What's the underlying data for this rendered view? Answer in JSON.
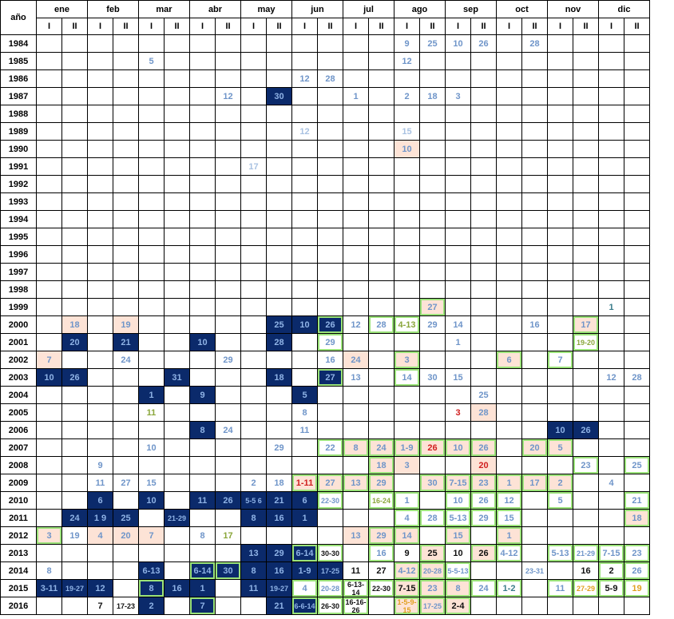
{
  "header": {
    "year_label": "año",
    "months": [
      "ene",
      "feb",
      "mar",
      "abr",
      "may",
      "jun",
      "jul",
      "ago",
      "sep",
      "oct",
      "nov",
      "dic"
    ],
    "halves": [
      "I",
      "II"
    ]
  },
  "rows": [
    {
      "year": "1984",
      "cells": [
        "",
        "",
        "",
        "",
        "",
        "",
        "",
        "",
        "",
        "",
        "",
        "",
        "",
        "",
        "9",
        "25",
        "10",
        "26",
        "",
        "28",
        "",
        "",
        "",
        ""
      ]
    },
    {
      "year": "1985",
      "cells": [
        "",
        "",
        "",
        "",
        "5",
        "",
        "",
        "",
        "",
        "",
        "",
        "",
        "",
        "",
        "12",
        "",
        "",
        "",
        "",
        "",
        "",
        "",
        "",
        ""
      ]
    },
    {
      "year": "1986",
      "cells": [
        "",
        "",
        "",
        "",
        "",
        "",
        "",
        "",
        "",
        "",
        "12",
        "28",
        "",
        "",
        "",
        "",
        "",
        "",
        "",
        "",
        "",
        "",
        "",
        ""
      ]
    },
    {
      "year": "1987",
      "cells": [
        "",
        "",
        "",
        "",
        "",
        "",
        "",
        "12",
        "",
        "30",
        "",
        "",
        "1",
        "",
        "2",
        "18",
        "3",
        "",
        "",
        "",
        "",
        "",
        "",
        ""
      ]
    },
    {
      "year": "1988",
      "cells": [
        "",
        "",
        "",
        "",
        "",
        "",
        "",
        "",
        "",
        "",
        "",
        "",
        "",
        "",
        "",
        "",
        "",
        "",
        "",
        "",
        "",
        "",
        "",
        ""
      ]
    },
    {
      "year": "1989",
      "cells": [
        "",
        "",
        "",
        "",
        "",
        "",
        "",
        "",
        "",
        "",
        "12",
        "",
        "",
        "",
        "15",
        "",
        "",
        "",
        "",
        "",
        "",
        "",
        "",
        ""
      ]
    },
    {
      "year": "1990",
      "cells": [
        "",
        "",
        "",
        "",
        "",
        "",
        "",
        "",
        "",
        "",
        "",
        "",
        "",
        "",
        "10",
        "",
        "",
        "",
        "",
        "",
        "",
        "",
        "",
        ""
      ]
    },
    {
      "year": "1991",
      "cells": [
        "",
        "",
        "",
        "",
        "",
        "",
        "",
        "",
        "17",
        "",
        "",
        "",
        "",
        "",
        "",
        "",
        "",
        "",
        "",
        "",
        "",
        "",
        "",
        ""
      ]
    },
    {
      "year": "1992",
      "cells": [
        "",
        "",
        "",
        "",
        "",
        "",
        "",
        "",
        "",
        "",
        "",
        "",
        "",
        "",
        "",
        "",
        "",
        "",
        "",
        "",
        "",
        "",
        "",
        ""
      ]
    },
    {
      "year": "1993",
      "cells": [
        "",
        "",
        "",
        "",
        "",
        "",
        "",
        "",
        "",
        "",
        "",
        "",
        "",
        "",
        "",
        "",
        "",
        "",
        "",
        "",
        "",
        "",
        "",
        ""
      ]
    },
    {
      "year": "1994",
      "cells": [
        "",
        "",
        "",
        "",
        "",
        "",
        "",
        "",
        "",
        "",
        "",
        "",
        "",
        "",
        "",
        "",
        "",
        "",
        "",
        "",
        "",
        "",
        "",
        ""
      ]
    },
    {
      "year": "1995",
      "cells": [
        "",
        "",
        "",
        "",
        "",
        "",
        "",
        "",
        "",
        "",
        "",
        "",
        "",
        "",
        "",
        "",
        "",
        "",
        "",
        "",
        "",
        "",
        "",
        ""
      ]
    },
    {
      "year": "1996",
      "cells": [
        "",
        "",
        "",
        "",
        "",
        "",
        "",
        "",
        "",
        "",
        "",
        "",
        "",
        "",
        "",
        "",
        "",
        "",
        "",
        "",
        "",
        "",
        "",
        ""
      ]
    },
    {
      "year": "1997",
      "cells": [
        "",
        "",
        "",
        "",
        "",
        "",
        "",
        "",
        "",
        "",
        "",
        "",
        "",
        "",
        "",
        "",
        "",
        "",
        "",
        "",
        "",
        "",
        "",
        ""
      ]
    },
    {
      "year": "1998",
      "cells": [
        "",
        "",
        "",
        "",
        "",
        "",
        "",
        "",
        "",
        "",
        "",
        "",
        "",
        "",
        "",
        "",
        "",
        "",
        "",
        "",
        "",
        "",
        "",
        ""
      ]
    },
    {
      "year": "1999",
      "cells": [
        "",
        "",
        "",
        "",
        "",
        "",
        "",
        "",
        "",
        "",
        "",
        "",
        "",
        "",
        "",
        "27",
        "",
        "",
        "",
        "",
        "",
        "",
        "1",
        ""
      ]
    },
    {
      "year": "2000",
      "cells": [
        "",
        "18",
        "",
        "19",
        "",
        "",
        "",
        "",
        "",
        "25",
        "10",
        "26",
        "12",
        "28",
        "4-13",
        "29",
        "14",
        "",
        "",
        "16",
        "",
        "17",
        "",
        ""
      ]
    },
    {
      "year": "2001",
      "cells": [
        "",
        "20",
        "",
        "21",
        "",
        "",
        "10",
        "",
        "",
        "28",
        "",
        "29",
        "",
        "",
        "",
        "",
        "1",
        "",
        "",
        "",
        "",
        "19-20",
        "",
        ""
      ]
    },
    {
      "year": "2002",
      "cells": [
        "7",
        "",
        "",
        "24",
        "",
        "",
        "",
        "29",
        "",
        "",
        "",
        "16",
        "24",
        "",
        "3",
        "",
        "",
        "",
        "6",
        "",
        "7",
        "",
        "",
        ""
      ]
    },
    {
      "year": "2003",
      "cells": [
        "10",
        "26",
        "",
        "",
        "",
        "31",
        "",
        "",
        "",
        "18",
        "",
        "27",
        "13",
        "",
        "14",
        "30",
        "15",
        "",
        "",
        "",
        "",
        "",
        "12",
        "28"
      ]
    },
    {
      "year": "2004",
      "cells": [
        "",
        "",
        "",
        "",
        "1",
        "",
        "9",
        "",
        "",
        "",
        "5",
        "",
        "",
        "",
        "",
        "",
        "",
        "25",
        "",
        "",
        "",
        "",
        "",
        ""
      ]
    },
    {
      "year": "2005",
      "cells": [
        "",
        "",
        "",
        "",
        "11",
        "",
        "",
        "",
        "",
        "",
        "8",
        "",
        "",
        "",
        "",
        "",
        "3",
        "28",
        "",
        "",
        "",
        "",
        "",
        ""
      ]
    },
    {
      "year": "2006",
      "cells": [
        "",
        "",
        "",
        "",
        "",
        "",
        "8",
        "24",
        "",
        "",
        "11",
        "",
        "",
        "",
        "",
        "",
        "",
        "",
        "",
        "",
        "10",
        "26",
        "",
        ""
      ]
    },
    {
      "year": "2007",
      "cells": [
        "",
        "",
        "",
        "",
        "10",
        "",
        "",
        "",
        "",
        "29",
        "",
        "22",
        "8",
        "24",
        "1-9",
        "26",
        "10",
        "26",
        "",
        "20",
        "5",
        "",
        "",
        ""
      ]
    },
    {
      "year": "2008",
      "cells": [
        "",
        "",
        "9",
        "",
        "",
        "",
        "",
        "",
        "",
        "",
        "",
        "",
        "",
        "18",
        "3",
        "",
        "",
        "20",
        "",
        "",
        "",
        "23",
        "",
        "25"
      ]
    },
    {
      "year": "2009",
      "cells": [
        "",
        "",
        "11",
        "27",
        "15",
        "",
        "",
        "",
        "2",
        "18",
        "1-11",
        "27",
        "13",
        "29",
        "",
        "30",
        "7-15",
        "23",
        "1",
        "17",
        "2",
        "",
        "4",
        ""
      ]
    },
    {
      "year": "2010",
      "cells": [
        "",
        "",
        "6",
        "",
        "10",
        "",
        "11",
        "26",
        "5-5 6",
        "21",
        "6",
        "22-30",
        "",
        "16-24",
        "1",
        "",
        "10",
        "26",
        "12",
        "",
        "5",
        "",
        "",
        "21"
      ]
    },
    {
      "year": "2011",
      "cells": [
        "",
        "24",
        "1 9",
        "25",
        "",
        "21-29",
        "",
        "",
        "8",
        "16",
        "1",
        "",
        "",
        "",
        "4",
        "28",
        "5-13",
        "29",
        "15",
        "",
        "",
        "",
        "",
        "18"
      ]
    },
    {
      "year": "2012",
      "cells": [
        "3",
        "19",
        "4",
        "20",
        "7",
        "",
        "8",
        "17",
        "",
        "",
        "",
        "",
        "13",
        "29",
        "14",
        "",
        "15",
        "",
        "1",
        "",
        "",
        "",
        "",
        ""
      ]
    },
    {
      "year": "2013",
      "cells": [
        "",
        "",
        "",
        "",
        "",
        "",
        "",
        "",
        "13",
        "29",
        "6-14",
        "30-30",
        "",
        "16",
        "9",
        "25",
        "10",
        "26",
        "4-12",
        "",
        "5-13",
        "21-29",
        "7-15",
        "23"
      ]
    },
    {
      "year": "2014",
      "cells": [
        "8",
        "",
        "",
        "",
        "6-13",
        "",
        "6-14",
        "30",
        "8",
        "16",
        "1-9",
        "17-25",
        "11",
        "27",
        "4-12",
        "20-28",
        "5-5-13",
        "",
        "",
        "23-31",
        "",
        "16",
        "2",
        "26"
      ]
    },
    {
      "year": "2015",
      "cells": [
        "3-11",
        "19-27",
        "12",
        "",
        "8",
        "16",
        "1",
        "",
        "11",
        "19-27",
        "4",
        "20-28",
        "6-13-14",
        "22-30",
        "7-15",
        "23",
        "8",
        "24",
        "1-2",
        "",
        "11",
        "27-29",
        "5-9",
        "19"
      ]
    },
    {
      "year": "2016",
      "cells": [
        "",
        "",
        "7",
        "17-23",
        "2",
        "",
        "7",
        "",
        "",
        "21",
        "6-6-14",
        "26-30",
        "16-16-26",
        "",
        "1-5-9-15",
        "17-25",
        "2-4",
        "",
        "",
        "",
        "",
        "",
        "",
        ""
      ]
    }
  ]
}
